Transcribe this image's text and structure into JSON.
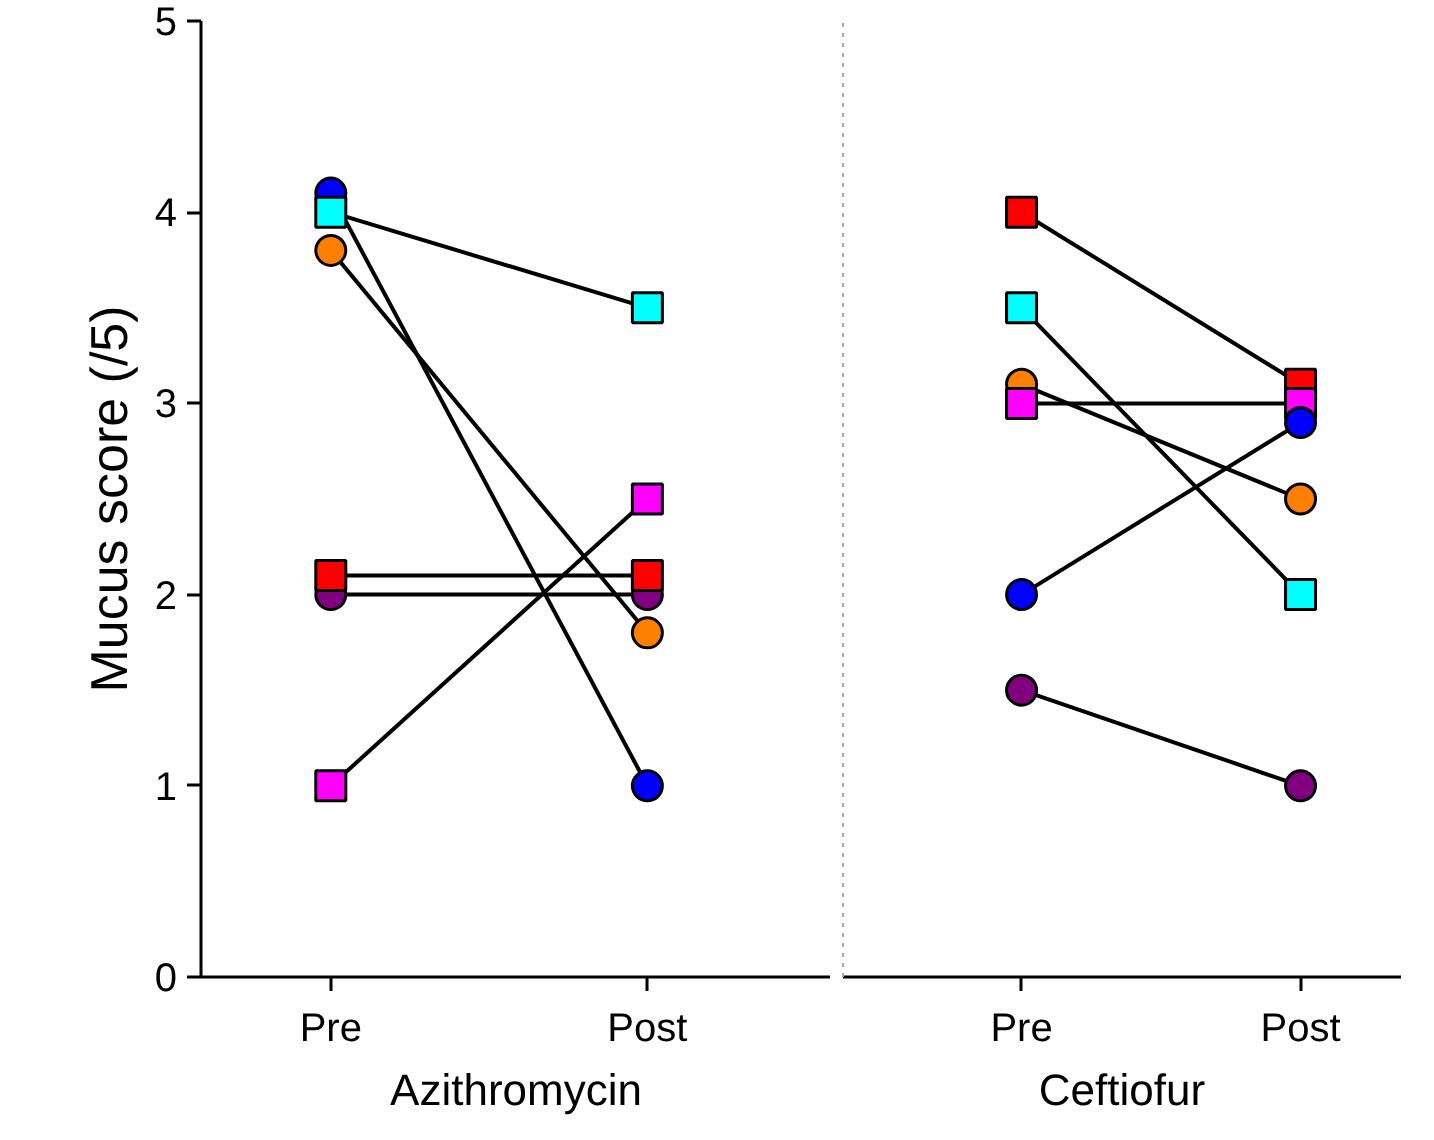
{
  "chart_data": [
    {
      "type": "line",
      "xlabel": "Azithromycin",
      "ylabel": "Mucus score (/5)",
      "categories": [
        "Pre",
        "Post"
      ],
      "ylim": [
        0,
        5
      ],
      "yticks": [
        0,
        1,
        2,
        3,
        4,
        5
      ],
      "grid": false,
      "line_style": "solid",
      "series": [
        {
          "color": "#0000ff",
          "marker": "circle",
          "values": [
            4.1,
            1.0
          ]
        },
        {
          "color": "#00ffff",
          "marker": "square",
          "values": [
            4.0,
            3.5
          ]
        },
        {
          "color": "#ff8000",
          "marker": "circle",
          "values": [
            3.8,
            1.8
          ]
        },
        {
          "color": "#800080",
          "marker": "circle",
          "values": [
            2.0,
            2.0
          ]
        },
        {
          "color": "#ff0000",
          "marker": "square",
          "values": [
            2.1,
            2.1
          ]
        },
        {
          "color": "#ff00ff",
          "marker": "square",
          "values": [
            1.0,
            2.5
          ]
        }
      ]
    },
    {
      "type": "line",
      "xlabel": "Ceftiofur",
      "categories": [
        "Pre",
        "Post"
      ],
      "ylim": [
        0,
        5
      ],
      "yticks": [
        0,
        1,
        2,
        3,
        4,
        5
      ],
      "tick_labels": "x",
      "grid": false,
      "line_style": "solid",
      "series": [
        {
          "color": "#ff0000",
          "marker": "square",
          "values": [
            4.0,
            3.1
          ]
        },
        {
          "color": "#00ffff",
          "marker": "square",
          "values": [
            3.5,
            2.0
          ]
        },
        {
          "color": "#ff8000",
          "marker": "circle",
          "values": [
            3.1,
            2.5
          ]
        },
        {
          "color": "#ff00ff",
          "marker": "square",
          "values": [
            3.0,
            3.0
          ]
        },
        {
          "color": "#0000ff",
          "marker": "circle",
          "values": [
            2.0,
            2.9
          ]
        },
        {
          "color": "#800080",
          "marker": "circle",
          "values": [
            1.5,
            1.0
          ]
        }
      ]
    }
  ]
}
